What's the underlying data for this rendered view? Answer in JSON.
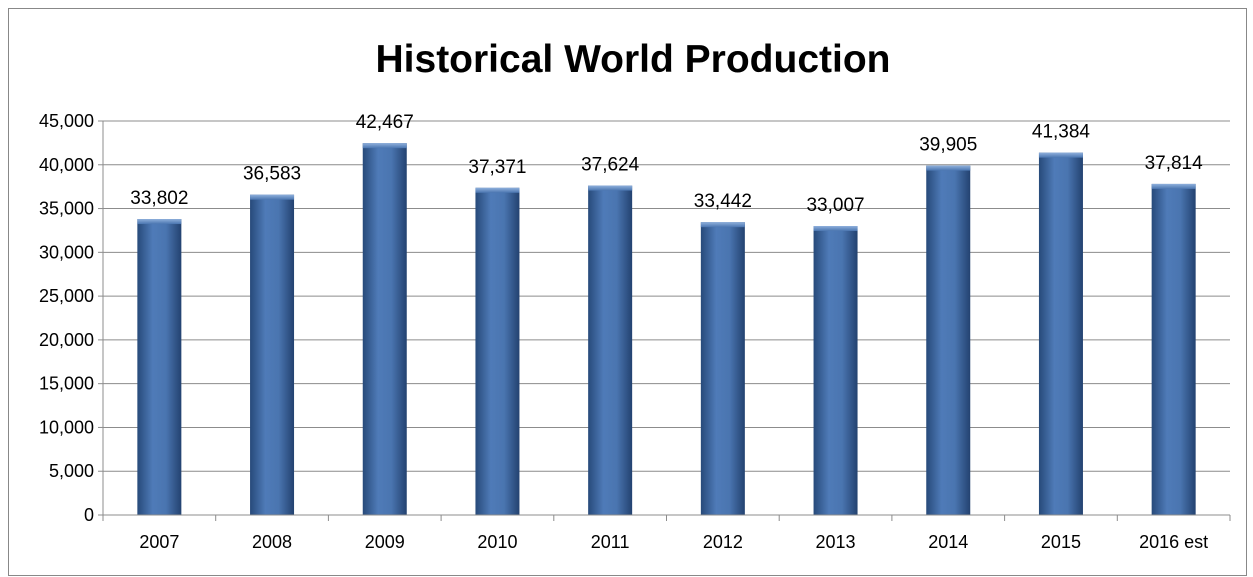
{
  "chart_data": {
    "type": "bar",
    "title": "Historical World Production",
    "xlabel": "",
    "ylabel": "",
    "categories": [
      "2007",
      "2008",
      "2009",
      "2010",
      "2011",
      "2012",
      "2013",
      "2014",
      "2015",
      "2016 est"
    ],
    "values": [
      33802,
      36583,
      42467,
      37371,
      37624,
      33442,
      33007,
      39905,
      41384,
      37814
    ],
    "value_labels": [
      "33,802",
      "36,583",
      "42,467",
      "37,371",
      "37,624",
      "33,442",
      "33,007",
      "39,905",
      "41,384",
      "37,814"
    ],
    "ylim": [
      0,
      45000
    ],
    "yticks": [
      0,
      5000,
      10000,
      15000,
      20000,
      25000,
      30000,
      35000,
      40000,
      45000
    ],
    "ytick_labels": [
      "0",
      "5,000",
      "10,000",
      "15,000",
      "20,000",
      "25,000",
      "30,000",
      "35,000",
      "40,000",
      "45,000"
    ],
    "grid": true,
    "legend": "none",
    "bar_color": "#3f68a0"
  }
}
